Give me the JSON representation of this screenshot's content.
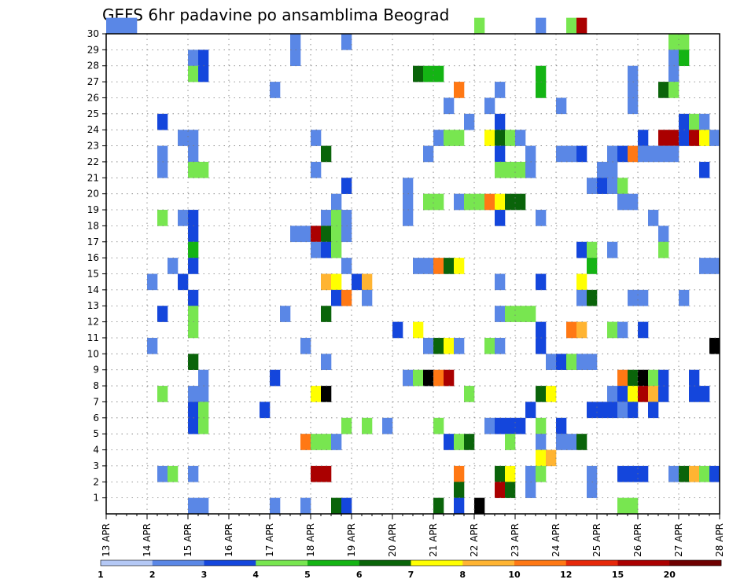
{
  "chart_data": {
    "type": "heatmap",
    "title": "GEFS 6hr padavine po ansamblima Beograd",
    "x_labels": [
      "13 APR",
      "14 APR",
      "15 APR",
      "16 APR",
      "17 APR",
      "18 APR",
      "19 APR",
      "20 APR",
      "21 APR",
      "22 APR",
      "23 APR",
      "24 APR",
      "25 APR",
      "26 APR",
      "27 APR",
      "28 APR"
    ],
    "y_labels": [
      "1",
      "2",
      "3",
      "4",
      "5",
      "6",
      "7",
      "8",
      "9",
      "10",
      "11",
      "12",
      "13",
      "14",
      "15",
      "16",
      "17",
      "18",
      "19",
      "20",
      "21",
      "22",
      "23",
      "24",
      "25",
      "26",
      "27",
      "28",
      "29",
      "30"
    ],
    "steps_per_day": 4,
    "x_range_steps": [
      0,
      60
    ],
    "y_range": [
      0,
      30
    ],
    "grid": true,
    "colorbar": {
      "labels": [
        "1",
        "2",
        "3",
        "4",
        "5",
        "6",
        "7",
        "8",
        "10",
        "12",
        "15",
        "20"
      ],
      "colors": [
        "#b4c8f5",
        "#5a87e6",
        "#1446dc",
        "#78e650",
        "#14b414",
        "#0a640a",
        "#ffff00",
        "#ffb432",
        "#ff7814",
        "#e6280a",
        "#aa0000",
        "#6e0000"
      ]
    },
    "cells": [
      [
        0,
        3,
        30,
        1
      ],
      [
        36,
        37,
        30,
        3
      ],
      [
        42,
        43,
        30,
        1
      ],
      [
        45,
        46,
        30,
        3
      ],
      [
        46,
        47,
        30,
        10
      ],
      [
        55,
        57,
        29,
        3
      ],
      [
        23,
        24,
        29,
        1
      ],
      [
        18,
        19,
        29,
        1
      ],
      [
        8,
        9,
        28,
        1
      ],
      [
        9,
        10,
        28,
        2
      ],
      [
        18,
        19,
        28,
        1
      ],
      [
        55,
        56,
        28,
        1
      ],
      [
        56,
        57,
        28,
        4
      ],
      [
        8,
        9,
        27,
        3
      ],
      [
        9,
        10,
        27,
        2
      ],
      [
        30,
        31,
        27,
        5
      ],
      [
        31,
        33,
        27,
        4
      ],
      [
        42,
        43,
        27,
        4
      ],
      [
        51,
        52,
        27,
        1
      ],
      [
        55,
        56,
        27,
        1
      ],
      [
        16,
        17,
        26,
        1
      ],
      [
        34,
        35,
        26,
        8
      ],
      [
        38,
        39,
        26,
        1
      ],
      [
        42,
        43,
        26,
        4
      ],
      [
        51,
        52,
        26,
        1
      ],
      [
        54,
        55,
        26,
        5
      ],
      [
        55,
        56,
        26,
        3
      ],
      [
        33,
        34,
        25,
        1
      ],
      [
        37,
        38,
        25,
        1
      ],
      [
        44,
        45,
        25,
        1
      ],
      [
        51,
        52,
        25,
        1
      ],
      [
        5,
        6,
        24,
        2
      ],
      [
        35,
        36,
        24,
        1
      ],
      [
        38,
        39,
        24,
        2
      ],
      [
        56,
        57,
        24,
        2
      ],
      [
        57,
        58,
        24,
        3
      ],
      [
        58,
        59,
        24,
        1
      ],
      [
        7,
        9,
        23,
        1
      ],
      [
        20,
        21,
        23,
        1
      ],
      [
        32,
        33,
        23,
        1
      ],
      [
        33,
        35,
        23,
        3
      ],
      [
        37,
        38,
        23,
        6
      ],
      [
        38,
        39,
        23,
        5
      ],
      [
        39,
        40,
        23,
        3
      ],
      [
        40,
        41,
        23,
        1
      ],
      [
        52,
        53,
        23,
        2
      ],
      [
        54,
        56,
        23,
        10
      ],
      [
        56,
        57,
        23,
        2
      ],
      [
        57,
        58,
        23,
        10
      ],
      [
        58,
        59,
        23,
        6
      ],
      [
        59,
        60,
        23,
        1
      ],
      [
        5,
        6,
        22,
        1
      ],
      [
        8,
        9,
        22,
        1
      ],
      [
        21,
        22,
        22,
        5
      ],
      [
        31,
        32,
        22,
        1
      ],
      [
        38,
        39,
        22,
        2
      ],
      [
        41,
        42,
        22,
        1
      ],
      [
        44,
        46,
        22,
        1
      ],
      [
        46,
        47,
        22,
        2
      ],
      [
        49,
        50,
        22,
        1
      ],
      [
        50,
        51,
        22,
        2
      ],
      [
        51,
        52,
        22,
        8
      ],
      [
        52,
        53,
        22,
        1
      ],
      [
        53,
        56,
        22,
        1
      ],
      [
        5,
        6,
        21,
        1
      ],
      [
        8,
        10,
        21,
        3
      ],
      [
        20,
        21,
        21,
        1
      ],
      [
        38,
        41,
        21,
        3
      ],
      [
        41,
        42,
        21,
        1
      ],
      [
        48,
        50,
        21,
        1
      ],
      [
        58,
        59,
        21,
        2
      ],
      [
        23,
        24,
        20,
        2
      ],
      [
        29,
        30,
        20,
        1
      ],
      [
        47,
        48,
        20,
        1
      ],
      [
        48,
        49,
        20,
        2
      ],
      [
        49,
        50,
        20,
        1
      ],
      [
        50,
        51,
        20,
        3
      ],
      [
        22,
        23,
        19,
        1
      ],
      [
        29,
        30,
        19,
        1
      ],
      [
        31,
        33,
        19,
        3
      ],
      [
        34,
        35,
        19,
        1
      ],
      [
        35,
        37,
        19,
        3
      ],
      [
        37,
        38,
        19,
        8
      ],
      [
        38,
        39,
        19,
        6
      ],
      [
        39,
        41,
        19,
        5
      ],
      [
        50,
        52,
        19,
        1
      ],
      [
        5,
        6,
        18,
        3
      ],
      [
        7,
        8,
        18,
        1
      ],
      [
        8,
        9,
        18,
        2
      ],
      [
        21,
        22,
        18,
        1
      ],
      [
        22,
        23,
        18,
        3
      ],
      [
        23,
        24,
        18,
        1
      ],
      [
        29,
        30,
        18,
        1
      ],
      [
        38,
        39,
        18,
        2
      ],
      [
        42,
        43,
        18,
        1
      ],
      [
        53,
        54,
        18,
        1
      ],
      [
        8,
        9,
        17,
        2
      ],
      [
        18,
        20,
        17,
        1
      ],
      [
        20,
        21,
        17,
        10
      ],
      [
        21,
        22,
        17,
        5
      ],
      [
        22,
        23,
        17,
        3
      ],
      [
        23,
        24,
        17,
        1
      ],
      [
        54,
        55,
        17,
        1
      ],
      [
        8,
        9,
        16,
        4
      ],
      [
        20,
        21,
        16,
        1
      ],
      [
        21,
        22,
        16,
        2
      ],
      [
        22,
        23,
        16,
        3
      ],
      [
        46,
        47,
        16,
        2
      ],
      [
        47,
        48,
        16,
        3
      ],
      [
        49,
        50,
        16,
        1
      ],
      [
        54,
        55,
        16,
        3
      ],
      [
        6,
        7,
        15,
        1
      ],
      [
        8,
        9,
        15,
        2
      ],
      [
        23,
        24,
        15,
        1
      ],
      [
        30,
        32,
        15,
        1
      ],
      [
        32,
        33,
        15,
        8
      ],
      [
        33,
        34,
        15,
        5
      ],
      [
        34,
        35,
        15,
        6
      ],
      [
        47,
        48,
        15,
        4
      ],
      [
        58,
        60,
        15,
        1
      ],
      [
        4,
        5,
        14,
        1
      ],
      [
        7,
        8,
        14,
        2
      ],
      [
        21,
        22,
        14,
        7
      ],
      [
        22,
        23,
        14,
        6
      ],
      [
        24,
        25,
        14,
        2
      ],
      [
        25,
        26,
        14,
        7
      ],
      [
        38,
        39,
        14,
        1
      ],
      [
        42,
        43,
        14,
        2
      ],
      [
        46,
        47,
        14,
        6
      ],
      [
        8,
        9,
        13,
        2
      ],
      [
        22,
        23,
        13,
        2
      ],
      [
        23,
        24,
        13,
        8
      ],
      [
        25,
        26,
        13,
        1
      ],
      [
        46,
        47,
        13,
        1
      ],
      [
        47,
        48,
        13,
        5
      ],
      [
        51,
        53,
        13,
        1
      ],
      [
        56,
        57,
        13,
        1
      ],
      [
        5,
        6,
        12,
        2
      ],
      [
        8,
        9,
        12,
        3
      ],
      [
        17,
        18,
        12,
        1
      ],
      [
        21,
        22,
        12,
        5
      ],
      [
        38,
        39,
        12,
        1
      ],
      [
        39,
        42,
        12,
        3
      ],
      [
        8,
        9,
        11,
        3
      ],
      [
        28,
        29,
        11,
        2
      ],
      [
        30,
        31,
        11,
        6
      ],
      [
        42,
        43,
        11,
        2
      ],
      [
        45,
        46,
        11,
        8
      ],
      [
        46,
        47,
        11,
        7
      ],
      [
        49,
        50,
        11,
        3
      ],
      [
        50,
        51,
        11,
        1
      ],
      [
        52,
        53,
        11,
        2
      ],
      [
        4,
        5,
        10,
        1
      ],
      [
        19,
        20,
        10,
        1
      ],
      [
        31,
        32,
        10,
        1
      ],
      [
        32,
        33,
        10,
        5
      ],
      [
        33,
        34,
        10,
        6
      ],
      [
        34,
        35,
        10,
        1
      ],
      [
        37,
        38,
        10,
        3
      ],
      [
        38,
        39,
        10,
        1
      ],
      [
        42,
        43,
        10,
        2
      ],
      [
        59,
        60,
        10,
        15
      ],
      [
        8,
        9,
        9,
        5
      ],
      [
        21,
        22,
        9,
        1
      ],
      [
        43,
        44,
        9,
        1
      ],
      [
        44,
        45,
        9,
        2
      ],
      [
        45,
        46,
        9,
        3
      ],
      [
        46,
        48,
        9,
        1
      ],
      [
        9,
        10,
        8,
        1
      ],
      [
        16,
        17,
        8,
        2
      ],
      [
        29,
        30,
        8,
        1
      ],
      [
        30,
        31,
        8,
        3
      ],
      [
        31,
        32,
        8,
        12
      ],
      [
        32,
        33,
        8,
        8
      ],
      [
        33,
        34,
        8,
        10
      ],
      [
        50,
        51,
        8,
        8
      ],
      [
        51,
        52,
        8,
        5
      ],
      [
        52,
        53,
        8,
        15
      ],
      [
        53,
        54,
        8,
        3
      ],
      [
        54,
        55,
        8,
        2
      ],
      [
        57,
        58,
        8,
        2
      ],
      [
        5,
        6,
        7,
        3
      ],
      [
        8,
        10,
        7,
        1
      ],
      [
        20,
        21,
        7,
        6
      ],
      [
        21,
        22,
        7,
        12
      ],
      [
        35,
        36,
        7,
        3
      ],
      [
        42,
        43,
        7,
        5
      ],
      [
        43,
        44,
        7,
        6
      ],
      [
        49,
        50,
        7,
        1
      ],
      [
        50,
        51,
        7,
        2
      ],
      [
        51,
        52,
        7,
        6
      ],
      [
        52,
        53,
        7,
        10
      ],
      [
        53,
        54,
        7,
        7
      ],
      [
        54,
        55,
        7,
        2
      ],
      [
        57,
        59,
        7,
        2
      ],
      [
        8,
        9,
        6,
        2
      ],
      [
        9,
        10,
        6,
        3
      ],
      [
        15,
        16,
        6,
        2
      ],
      [
        41,
        42,
        6,
        2
      ],
      [
        47,
        50,
        6,
        2
      ],
      [
        50,
        51,
        6,
        1
      ],
      [
        51,
        52,
        6,
        2
      ],
      [
        53,
        54,
        6,
        2
      ],
      [
        8,
        9,
        5,
        2
      ],
      [
        9,
        10,
        5,
        3
      ],
      [
        23,
        24,
        5,
        3
      ],
      [
        25,
        26,
        5,
        3
      ],
      [
        27,
        28,
        5,
        1
      ],
      [
        32,
        33,
        5,
        3
      ],
      [
        37,
        38,
        5,
        1
      ],
      [
        38,
        41,
        5,
        2
      ],
      [
        42,
        43,
        5,
        3
      ],
      [
        44,
        45,
        5,
        2
      ],
      [
        19,
        20,
        4,
        8
      ],
      [
        20,
        22,
        4,
        3
      ],
      [
        22,
        23,
        4,
        1
      ],
      [
        33,
        34,
        4,
        2
      ],
      [
        34,
        35,
        4,
        3
      ],
      [
        35,
        36,
        4,
        5
      ],
      [
        39,
        40,
        4,
        3
      ],
      [
        42,
        43,
        4,
        1
      ],
      [
        44,
        46,
        4,
        1
      ],
      [
        46,
        47,
        4,
        5
      ],
      [
        42,
        43,
        3,
        6
      ],
      [
        43,
        44,
        3,
        7
      ],
      [
        5,
        6,
        2,
        1
      ],
      [
        6,
        7,
        2,
        3
      ],
      [
        8,
        9,
        2,
        1
      ],
      [
        20,
        22,
        2,
        10
      ],
      [
        34,
        35,
        2,
        8
      ],
      [
        38,
        39,
        2,
        5
      ],
      [
        39,
        40,
        2,
        6
      ],
      [
        41,
        42,
        2,
        1
      ],
      [
        42,
        43,
        2,
        3
      ],
      [
        47,
        48,
        2,
        1
      ],
      [
        50,
        53,
        2,
        2
      ],
      [
        55,
        56,
        2,
        1
      ],
      [
        56,
        57,
        2,
        5
      ],
      [
        57,
        58,
        2,
        7
      ],
      [
        58,
        59,
        2,
        3
      ],
      [
        59,
        60,
        2,
        2
      ],
      [
        34,
        35,
        1,
        5
      ],
      [
        38,
        39,
        1,
        10
      ],
      [
        39,
        40,
        1,
        5
      ],
      [
        41,
        42,
        1,
        1
      ],
      [
        47,
        48,
        1,
        1
      ],
      [
        8,
        10,
        0,
        1
      ],
      [
        16,
        17,
        0,
        1
      ],
      [
        19,
        20,
        0,
        1
      ],
      [
        22,
        23,
        0,
        5
      ],
      [
        23,
        24,
        0,
        2
      ],
      [
        32,
        33,
        0,
        5
      ],
      [
        34,
        35,
        0,
        2
      ],
      [
        36,
        37,
        0,
        12
      ],
      [
        50,
        52,
        0,
        3
      ]
    ]
  }
}
